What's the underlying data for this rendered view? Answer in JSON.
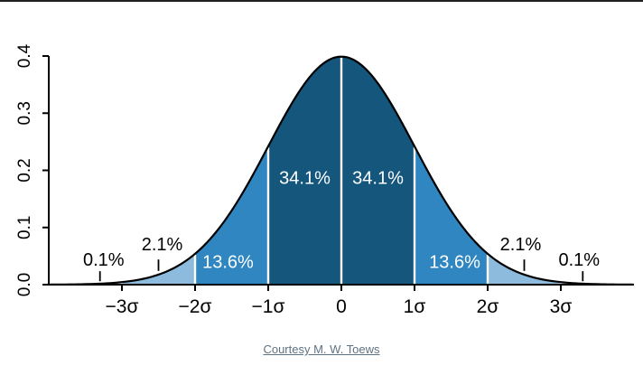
{
  "caption": {
    "text": "Courtesy M. W. Toews"
  },
  "colors": {
    "background": "#ffffff",
    "caption": "#5f7282",
    "top_edge": "#202020"
  },
  "chart_data": {
    "type": "area",
    "title": "",
    "curve": "standard normal probability density function",
    "xlim": [
      -4,
      4
    ],
    "ylim": [
      0,
      0.4
    ],
    "grid": false,
    "legend": false,
    "outline_color": "#000000",
    "separator_color": "#ffffff",
    "axis_color": "#000000",
    "x_ticks": [
      {
        "value": -3,
        "label": "−3σ"
      },
      {
        "value": -2,
        "label": "−2σ"
      },
      {
        "value": -1,
        "label": "−1σ"
      },
      {
        "value": 0,
        "label": "0"
      },
      {
        "value": 1,
        "label": "1σ"
      },
      {
        "value": 2,
        "label": "2σ"
      },
      {
        "value": 3,
        "label": "3σ"
      }
    ],
    "y_ticks": [
      {
        "value": 0.0,
        "label": "0.0"
      },
      {
        "value": 0.1,
        "label": "0.1"
      },
      {
        "value": 0.2,
        "label": "0.2"
      },
      {
        "value": 0.3,
        "label": "0.3"
      },
      {
        "value": 0.4,
        "label": "0.4"
      }
    ],
    "bands": [
      {
        "from": -4,
        "to": -3,
        "area": "0.1%",
        "fill": "#cfdeee"
      },
      {
        "from": -3,
        "to": -2,
        "area": "2.1%",
        "fill": "#8cbbdd"
      },
      {
        "from": -2,
        "to": -1,
        "area": "13.6%",
        "fill": "#2f86c0"
      },
      {
        "from": -1,
        "to": 0,
        "area": "34.1%",
        "fill": "#15567d"
      },
      {
        "from": 0,
        "to": 1,
        "area": "34.1%",
        "fill": "#15567d"
      },
      {
        "from": 1,
        "to": 2,
        "area": "13.6%",
        "fill": "#2f86c0"
      },
      {
        "from": 2,
        "to": 3,
        "area": "2.1%",
        "fill": "#8cbbdd"
      },
      {
        "from": 3,
        "to": 4,
        "area": "0.1%",
        "fill": "#cfdeee"
      }
    ],
    "separators": [
      -3,
      -2,
      -1,
      0,
      1,
      2,
      3
    ],
    "area_labels": [
      {
        "text": "34.1%",
        "x": -0.5,
        "y": 0.187,
        "color": "#ffffff"
      },
      {
        "text": "34.1%",
        "x": 0.5,
        "y": 0.187,
        "color": "#ffffff"
      },
      {
        "text": "13.6%",
        "x": -1.55,
        "y": 0.04,
        "color": "#ffffff"
      },
      {
        "text": "13.6%",
        "x": 1.55,
        "y": 0.04,
        "color": "#ffffff"
      },
      {
        "text": "2.1%",
        "x": -2.45,
        "y": 0.071,
        "color": "#000000"
      },
      {
        "text": "2.1%",
        "x": 2.45,
        "y": 0.071,
        "color": "#000000"
      },
      {
        "text": "0.1%",
        "x": -3.25,
        "y": 0.044,
        "color": "#000000"
      },
      {
        "text": "0.1%",
        "x": 3.25,
        "y": 0.044,
        "color": "#000000"
      }
    ],
    "pointer_ticks": [
      {
        "x": -2.5,
        "y1": 0.024,
        "y2": 0.044
      },
      {
        "x": 2.5,
        "y1": 0.024,
        "y2": 0.044
      },
      {
        "x": -3.3,
        "y1": 0.006,
        "y2": 0.0235
      },
      {
        "x": 3.3,
        "y1": 0.006,
        "y2": 0.0235
      }
    ]
  }
}
